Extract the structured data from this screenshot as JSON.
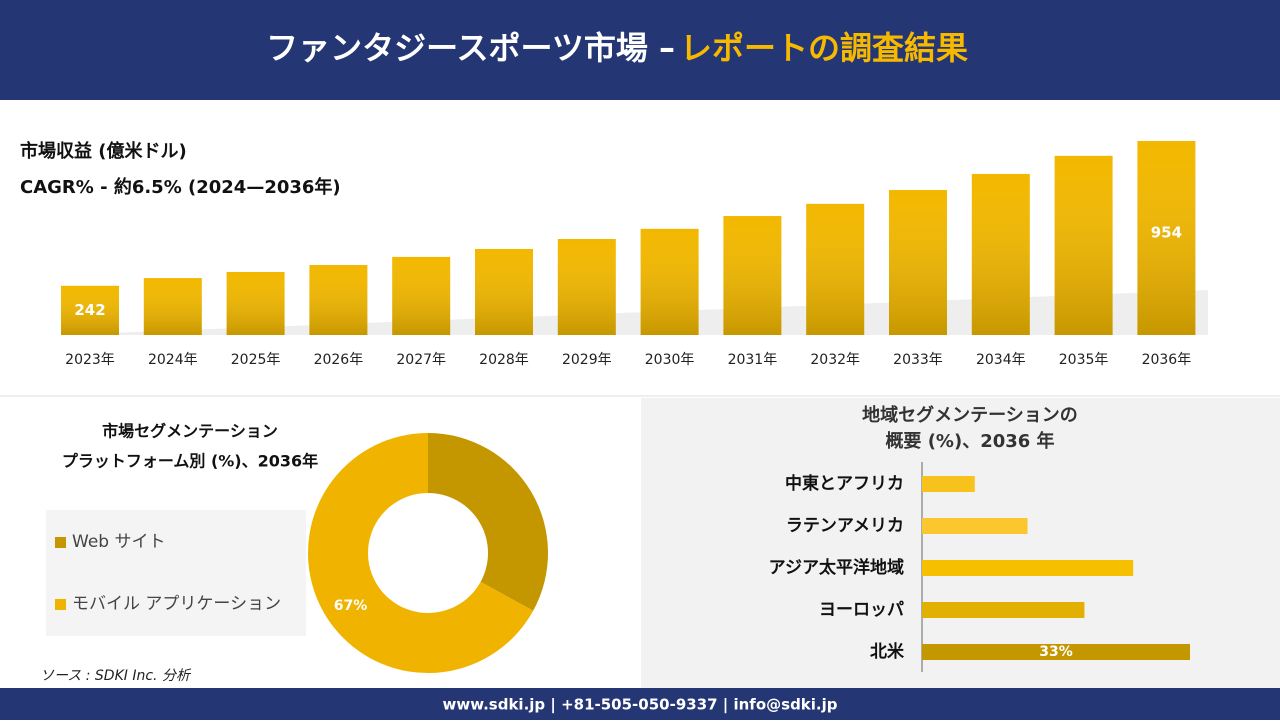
{
  "header": {
    "title": "ファンタジースポーツ市場 –",
    "highlight": "レポートの調査結果"
  },
  "footer": "www.sdki.jp | +81-505-050-9337 | info@sdki.jp",
  "source": "ソース : SDKI Inc. 分析",
  "chart_data": [
    {
      "type": "bar",
      "title": "市場収益 (億米ドル)",
      "subtitle": "CAGR% - 約6.5% (2024—2036年)",
      "categories": [
        "2023年",
        "2024年",
        "2025年",
        "2026年",
        "2027年",
        "2028年",
        "2029年",
        "2030年",
        "2031年",
        "2032年",
        "2033年",
        "2034年",
        "2035年",
        "2036年"
      ],
      "values": [
        242,
        280,
        310,
        344,
        384,
        423,
        472,
        522,
        585,
        645,
        713,
        792,
        881,
        954
      ],
      "color": "#f2b800"
    },
    {
      "type": "donut",
      "title": "市場セグメンテーション",
      "subtitle": "プラットフォーム別 (%)、2036年",
      "categories": [
        "Web サイト",
        "モバイル アプリケーション"
      ],
      "values": [
        33,
        67
      ],
      "value_labels": [
        null,
        "67%"
      ],
      "colors": [
        "#c49600",
        "#f0b400"
      ]
    },
    {
      "type": "hbar",
      "title": "地域セグメンテーションの",
      "subtitle": "概要 (%)、2036 年",
      "categories": [
        "中東とアフリカ",
        "ラテンアメリカ",
        "アジア太平洋地域",
        "ヨーロッパ",
        "北米"
      ],
      "values": [
        6.5,
        13,
        26,
        20,
        33
      ],
      "value_labels": [
        null,
        null,
        null,
        null,
        "33%"
      ],
      "colors": [
        "#f7c21c",
        "#fcc72e",
        "#f6bf00",
        "#e2b000",
        "#c49600"
      ]
    }
  ]
}
